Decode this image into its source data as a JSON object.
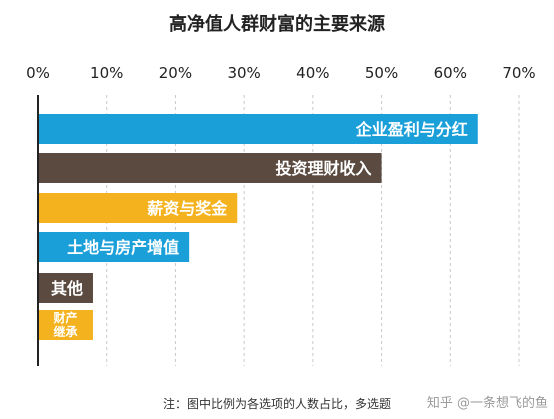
{
  "chart_data": {
    "type": "bar",
    "orientation": "horizontal",
    "title": "高净值人群财富的主要来源",
    "xlim": [
      0,
      70
    ],
    "ticks": [
      {
        "value": 0,
        "label": "0%"
      },
      {
        "value": 10,
        "label": "10%"
      },
      {
        "value": 20,
        "label": "20%"
      },
      {
        "value": 30,
        "label": "30%"
      },
      {
        "value": 40,
        "label": "40%"
      },
      {
        "value": 50,
        "label": "50%"
      },
      {
        "value": 60,
        "label": "60%"
      },
      {
        "value": 70,
        "label": "70%"
      }
    ],
    "grid": "vertical dashed",
    "categories": [
      "企业盈利与分红",
      "投资理财收入",
      "薪资与奖金",
      "土地与房产增值",
      "其他",
      "财产继承"
    ],
    "category_lines": [
      [
        "企业盈利与分红"
      ],
      [
        "投资理财收入"
      ],
      [
        "薪资与奖金"
      ],
      [
        "土地与房产增值"
      ],
      [
        "其他"
      ],
      [
        "财产",
        "继承"
      ]
    ],
    "values": [
      64,
      50,
      29,
      22,
      8,
      8
    ],
    "colors": [
      "#1a9fd9",
      "#5a4a40",
      "#f5b21f",
      "#1a9fd9",
      "#5a4a40",
      "#f5b21f"
    ],
    "note": "注：图中比例为各选项的人数占比，多选题"
  },
  "watermark": "知乎 @一条想飞的鱼"
}
